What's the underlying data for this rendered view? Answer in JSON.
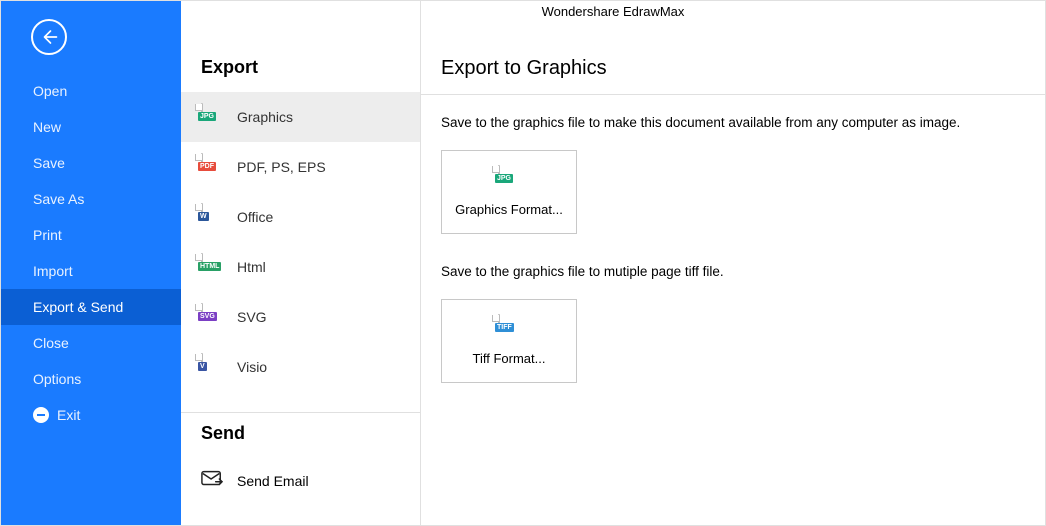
{
  "app_title": "Wondershare EdrawMax",
  "sidebar": {
    "items": [
      {
        "label": "Open",
        "active": false
      },
      {
        "label": "New",
        "active": false
      },
      {
        "label": "Save",
        "active": false
      },
      {
        "label": "Save As",
        "active": false
      },
      {
        "label": "Print",
        "active": false
      },
      {
        "label": "Import",
        "active": false
      },
      {
        "label": "Export & Send",
        "active": true
      },
      {
        "label": "Close",
        "active": false
      },
      {
        "label": "Options",
        "active": false
      }
    ],
    "exit_label": "Exit"
  },
  "export_section": {
    "title": "Export",
    "items": [
      {
        "label": "Graphics",
        "badge": "JPG",
        "badge_color": "#1aa77a",
        "selected": true
      },
      {
        "label": "PDF, PS, EPS",
        "badge": "PDF",
        "badge_color": "#e74c3c",
        "selected": false
      },
      {
        "label": "Office",
        "badge": "W",
        "badge_color": "#2b579a",
        "selected": false
      },
      {
        "label": "Html",
        "badge": "HTML",
        "badge_color": "#29a066",
        "selected": false
      },
      {
        "label": "SVG",
        "badge": "SVG",
        "badge_color": "#7b3fc4",
        "selected": false
      },
      {
        "label": "Visio",
        "badge": "V",
        "badge_color": "#3955a3",
        "selected": false
      }
    ]
  },
  "send_section": {
    "title": "Send",
    "items": [
      {
        "label": "Send Email"
      }
    ]
  },
  "main": {
    "title": "Export to Graphics",
    "block1": {
      "desc": "Save to the graphics file to make this document available from any computer as image.",
      "card_label": "Graphics Format...",
      "badge": "JPG",
      "badge_color": "#1aa77a"
    },
    "block2": {
      "desc": "Save to the graphics file to mutiple page tiff file.",
      "card_label": "Tiff Format...",
      "badge": "TIFF",
      "badge_color": "#2f8fd6"
    }
  },
  "colors": {
    "sidebar_bg": "#1a7bff",
    "sidebar_active": "#0b5fd4"
  }
}
